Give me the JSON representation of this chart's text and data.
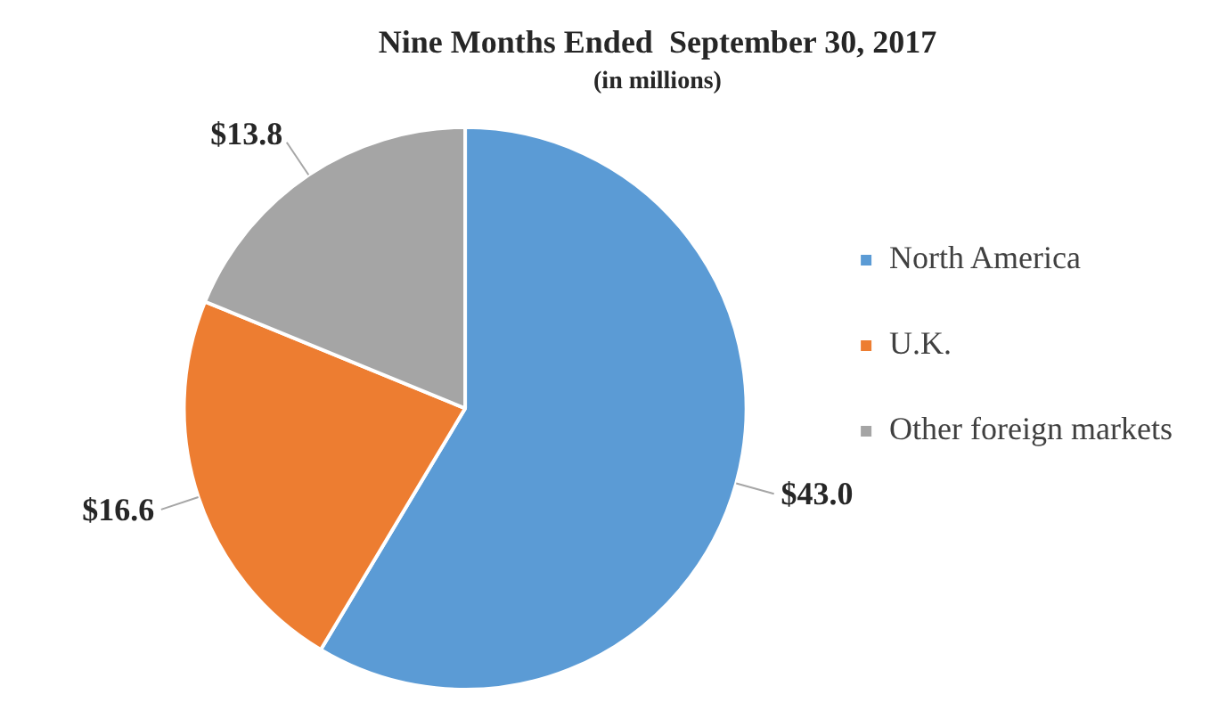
{
  "chart_data": {
    "type": "pie",
    "title": "Nine Months Ended  September 30, 2017",
    "subtitle": "(in millions)",
    "categories": [
      "North America",
      "U.K.",
      "Other foreign markets"
    ],
    "values": [
      43.0,
      16.6,
      13.8
    ],
    "value_labels": [
      "$43.0",
      "$16.6",
      "$13.8"
    ],
    "colors": [
      "#5b9bd5",
      "#ed7d31",
      "#a5a5a5"
    ],
    "legend": "right"
  }
}
